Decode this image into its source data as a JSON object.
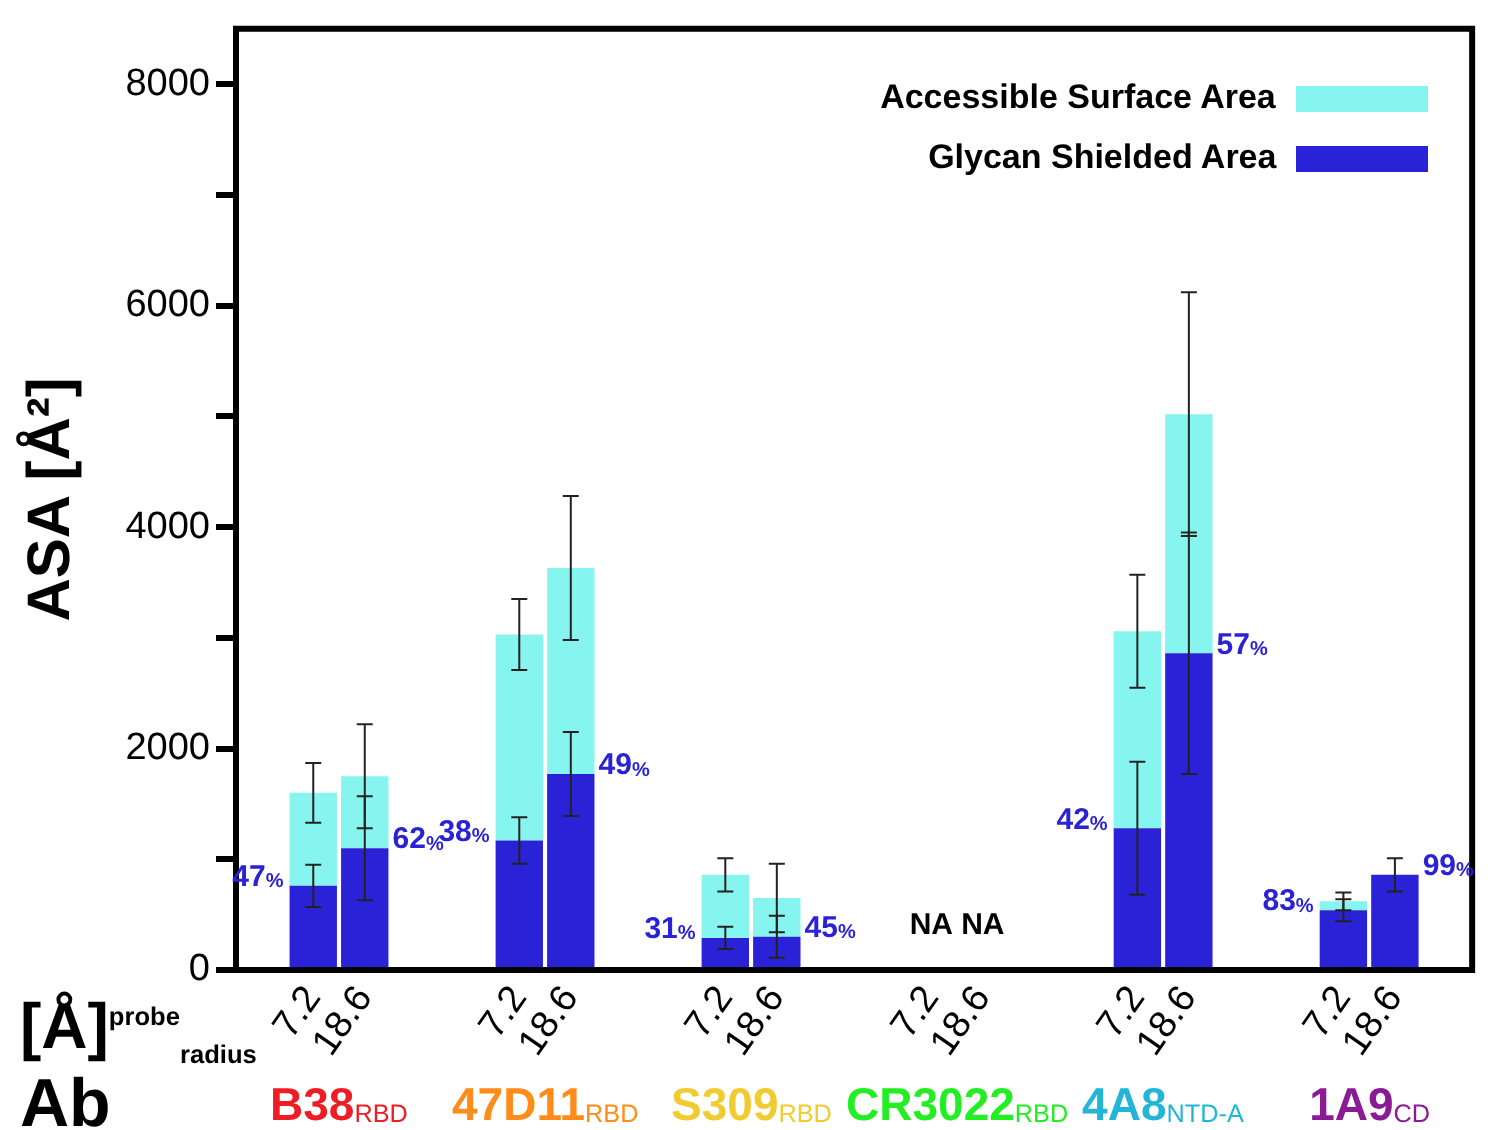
{
  "chart_data": {
    "type": "bar",
    "ylabel": "ASA [Å²]",
    "categories": [
      null,
      "7.2",
      "18.6",
      null,
      null,
      "7.2",
      "18.6",
      null,
      null,
      "7.2",
      "18.6",
      null,
      null,
      "7.2",
      "18.6",
      null,
      null,
      "7.2",
      "18.6",
      null,
      null,
      "7.2",
      "18.6",
      null
    ],
    "stacked": true,
    "series": [
      {
        "name": "Glycan Shielded Area",
        "color": "#2a22d6",
        "values": [
          null,
          760,
          1100,
          null,
          null,
          1170,
          1770,
          null,
          null,
          290,
          300,
          null,
          null,
          null,
          null,
          null,
          null,
          1280,
          2860,
          null,
          null,
          540,
          860,
          null
        ],
        "errors": [
          null,
          190,
          470,
          null,
          null,
          210,
          380,
          null,
          null,
          100,
          190,
          null,
          null,
          null,
          null,
          null,
          null,
          600,
          1090,
          null,
          null,
          100,
          150,
          null
        ]
      },
      {
        "name": "Accessible Surface Area",
        "color": "#86f5f0",
        "values": [
          null,
          840,
          650,
          null,
          null,
          1860,
          1860,
          null,
          null,
          570,
          350,
          null,
          null,
          null,
          null,
          null,
          null,
          1780,
          2160,
          null,
          null,
          80,
          null,
          null
        ],
        "errors": [
          null,
          270,
          470,
          null,
          null,
          320,
          650,
          null,
          null,
          150,
          310,
          null,
          null,
          null,
          null,
          null,
          null,
          510,
          1100,
          null,
          null,
          80,
          null,
          null
        ]
      }
    ],
    "ylim": [
      0,
      8500
    ],
    "yticks": [
      0,
      {
        "value": 1000,
        "label": null
      },
      2000,
      {
        "value": 3000,
        "label": null
      },
      4000,
      {
        "value": 5000,
        "label": null
      },
      6000,
      {
        "value": 7000,
        "label": null
      },
      8000
    ],
    "grid": false,
    "legend": "top right",
    "annotations": [
      "[Å]$^{probe}$$_{radius}$",
      "Ab",
      "B38$_{RBD}$",
      "47D11$_{RBD}$",
      "S309$_{RBD}$",
      "CR3022$_{RBD}$",
      "4A8$_{NTD-A}$",
      "1A9$_{CD}$",
      "47%",
      "62%",
      "38%",
      "49%",
      "31%",
      "45%",
      "NA",
      "NA",
      "42%",
      "57%",
      "83%",
      "99%"
    ]
  }
}
